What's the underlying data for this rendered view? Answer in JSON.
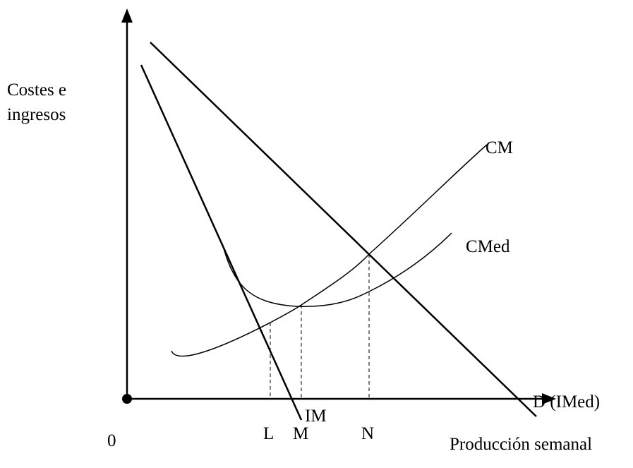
{
  "axes": {
    "y_label_line1": "Costes e",
    "y_label_line2": "ingresos",
    "x_label": "Producción semanal",
    "origin": "0"
  },
  "curves": {
    "cm": "CM",
    "cmed": "CMed",
    "im": "IM",
    "demand": "D (IMed)"
  },
  "points": {
    "l": "L",
    "m": "M",
    "n": "N"
  }
}
